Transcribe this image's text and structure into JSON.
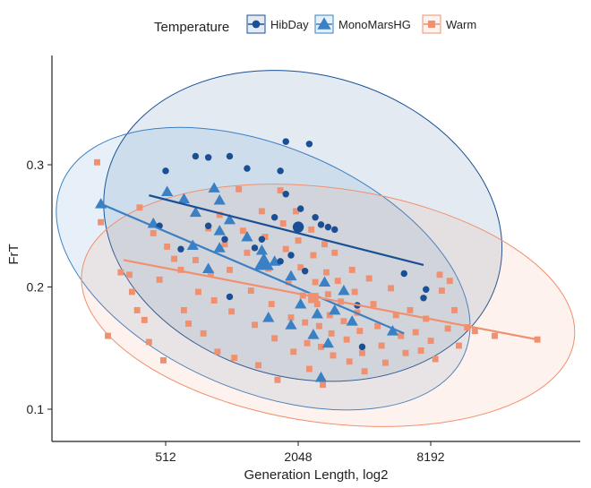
{
  "chart_data": {
    "type": "scatter",
    "xlabel": "Generation Length, log2",
    "ylabel": "FrT",
    "x_scale": "log2",
    "x_ticks": [
      512,
      2048,
      8192
    ],
    "x_tick_labels": [
      "512",
      "2048",
      "8192"
    ],
    "y_ticks": [
      0.1,
      0.2,
      0.3
    ],
    "y_tick_labels": [
      "0.1",
      "0.2",
      "0.3"
    ],
    "xlim": [
      128,
      30000
    ],
    "ylim": [
      0.075,
      0.38
    ],
    "grid": false,
    "legend": {
      "title": "Temperature",
      "position": "top"
    },
    "series": [
      {
        "name": "HibDay",
        "color": "#1a4f94",
        "marker": "diamond",
        "points": [
          [
            512,
            0.295
          ],
          [
            700,
            0.307
          ],
          [
            800,
            0.306
          ],
          [
            1000,
            0.307
          ],
          [
            1200,
            0.297
          ],
          [
            1700,
            0.295
          ],
          [
            1800,
            0.319
          ],
          [
            2300,
            0.317
          ],
          [
            2450,
            0.257
          ],
          [
            2600,
            0.251
          ],
          [
            2800,
            0.249
          ],
          [
            3000,
            0.247
          ],
          [
            1800,
            0.276
          ],
          [
            2100,
            0.264
          ],
          [
            1600,
            0.257
          ],
          [
            1400,
            0.239
          ],
          [
            950,
            0.239
          ],
          [
            1300,
            0.232
          ],
          [
            600,
            0.231
          ],
          [
            1900,
            0.226
          ],
          [
            2200,
            0.213
          ],
          [
            1700,
            0.221
          ],
          [
            480,
            0.25
          ],
          [
            1000,
            0.192
          ],
          [
            3800,
            0.185
          ],
          [
            4000,
            0.151
          ],
          [
            7800,
            0.198
          ],
          [
            7600,
            0.191
          ],
          [
            6200,
            0.211
          ],
          [
            800,
            0.25
          ]
        ],
        "trend": [
          [
            430,
            0.275
          ],
          [
            7600,
            0.218
          ]
        ],
        "centroid": [
          2050,
          0.249
        ]
      },
      {
        "name": "MonoMarsHG",
        "color": "#3a80c4",
        "marker": "triangle",
        "points": [
          [
            260,
            0.268
          ],
          [
            450,
            0.252
          ],
          [
            520,
            0.278
          ],
          [
            620,
            0.272
          ],
          [
            700,
            0.261
          ],
          [
            850,
            0.281
          ],
          [
            900,
            0.271
          ],
          [
            1000,
            0.255
          ],
          [
            1200,
            0.241
          ],
          [
            900,
            0.246
          ],
          [
            680,
            0.234
          ],
          [
            800,
            0.215
          ],
          [
            1400,
            0.23
          ],
          [
            1600,
            0.221
          ],
          [
            1900,
            0.209
          ],
          [
            2100,
            0.186
          ],
          [
            2700,
            0.204
          ],
          [
            2500,
            0.178
          ],
          [
            3000,
            0.181
          ],
          [
            1500,
            0.175
          ],
          [
            1900,
            0.169
          ],
          [
            2400,
            0.161
          ],
          [
            2600,
            0.126
          ],
          [
            2800,
            0.154
          ],
          [
            3300,
            0.197
          ],
          [
            900,
            0.232
          ],
          [
            3600,
            0.172
          ],
          [
            5500,
            0.164
          ]
        ],
        "trend": [
          [
            260,
            0.268
          ],
          [
            6200,
            0.162
          ]
        ],
        "centroid": [
          1430,
          0.22
        ]
      },
      {
        "name": "Warm",
        "color": "#f0906e",
        "marker": "square",
        "points": [
          [
            250,
            0.302
          ],
          [
            260,
            0.253
          ],
          [
            280,
            0.16
          ],
          [
            320,
            0.212
          ],
          [
            350,
            0.21
          ],
          [
            360,
            0.196
          ],
          [
            380,
            0.181
          ],
          [
            390,
            0.265
          ],
          [
            410,
            0.173
          ],
          [
            430,
            0.155
          ],
          [
            450,
            0.244
          ],
          [
            480,
            0.206
          ],
          [
            500,
            0.14
          ],
          [
            520,
            0.233
          ],
          [
            560,
            0.223
          ],
          [
            600,
            0.214
          ],
          [
            620,
            0.181
          ],
          [
            650,
            0.17
          ],
          [
            700,
            0.222
          ],
          [
            720,
            0.196
          ],
          [
            760,
            0.162
          ],
          [
            800,
            0.248
          ],
          [
            820,
            0.211
          ],
          [
            850,
            0.189
          ],
          [
            880,
            0.147
          ],
          [
            900,
            0.259
          ],
          [
            950,
            0.235
          ],
          [
            1000,
            0.214
          ],
          [
            1020,
            0.18
          ],
          [
            1050,
            0.142
          ],
          [
            1100,
            0.28
          ],
          [
            1150,
            0.246
          ],
          [
            1200,
            0.228
          ],
          [
            1250,
            0.197
          ],
          [
            1300,
            0.169
          ],
          [
            1350,
            0.136
          ],
          [
            1400,
            0.262
          ],
          [
            1450,
            0.241
          ],
          [
            1500,
            0.215
          ],
          [
            1550,
            0.186
          ],
          [
            1600,
            0.158
          ],
          [
            1650,
            0.124
          ],
          [
            1700,
            0.279
          ],
          [
            1750,
            0.252
          ],
          [
            1800,
            0.231
          ],
          [
            1850,
            0.204
          ],
          [
            1900,
            0.175
          ],
          [
            1950,
            0.147
          ],
          [
            2000,
            0.262
          ],
          [
            2050,
            0.238
          ],
          [
            2100,
            0.216
          ],
          [
            2150,
            0.193
          ],
          [
            2200,
            0.171
          ],
          [
            2250,
            0.154
          ],
          [
            2300,
            0.133
          ],
          [
            2350,
            0.247
          ],
          [
            2400,
            0.226
          ],
          [
            2450,
            0.204
          ],
          [
            2500,
            0.186
          ],
          [
            2550,
            0.168
          ],
          [
            2600,
            0.151
          ],
          [
            2650,
            0.12
          ],
          [
            2700,
            0.235
          ],
          [
            2750,
            0.212
          ],
          [
            2800,
            0.194
          ],
          [
            2850,
            0.177
          ],
          [
            2900,
            0.162
          ],
          [
            2950,
            0.144
          ],
          [
            3000,
            0.228
          ],
          [
            3100,
            0.205
          ],
          [
            3200,
            0.188
          ],
          [
            3300,
            0.172
          ],
          [
            3400,
            0.157
          ],
          [
            3500,
            0.139
          ],
          [
            3600,
            0.214
          ],
          [
            3700,
            0.196
          ],
          [
            3800,
            0.179
          ],
          [
            3900,
            0.164
          ],
          [
            4000,
            0.146
          ],
          [
            4100,
            0.131
          ],
          [
            4300,
            0.207
          ],
          [
            4500,
            0.186
          ],
          [
            4700,
            0.168
          ],
          [
            4900,
            0.152
          ],
          [
            5100,
            0.138
          ],
          [
            5400,
            0.199
          ],
          [
            5700,
            0.177
          ],
          [
            6000,
            0.16
          ],
          [
            6300,
            0.146
          ],
          [
            6600,
            0.181
          ],
          [
            7000,
            0.163
          ],
          [
            7400,
            0.148
          ],
          [
            7800,
            0.174
          ],
          [
            8200,
            0.156
          ],
          [
            8600,
            0.141
          ],
          [
            9200,
            0.197
          ],
          [
            9800,
            0.166
          ],
          [
            10500,
            0.181
          ],
          [
            11000,
            0.152
          ],
          [
            12000,
            0.167
          ],
          [
            13000,
            0.164
          ],
          [
            16000,
            0.16
          ],
          [
            25000,
            0.157
          ],
          [
            10000,
            0.205
          ],
          [
            9000,
            0.21
          ]
        ],
        "trend": [
          [
            330,
            0.222
          ],
          [
            25000,
            0.157
          ]
        ],
        "centroid": [
          2400,
          0.191
        ]
      }
    ],
    "ellipses": [
      {
        "series": "HibDay",
        "cx": 2150,
        "cy": 0.25,
        "rx_log2": 3.05,
        "ry": 0.124,
        "angle_deg": 15
      },
      {
        "series": "MonoMarsHG",
        "cx": 1420,
        "cy": 0.215,
        "rx_log2": 3.3,
        "ry": 0.1,
        "angle_deg": 23
      },
      {
        "series": "Warm",
        "cx": 2800,
        "cy": 0.185,
        "rx_log2": 3.75,
        "ry": 0.096,
        "angle_deg": 8
      }
    ]
  }
}
